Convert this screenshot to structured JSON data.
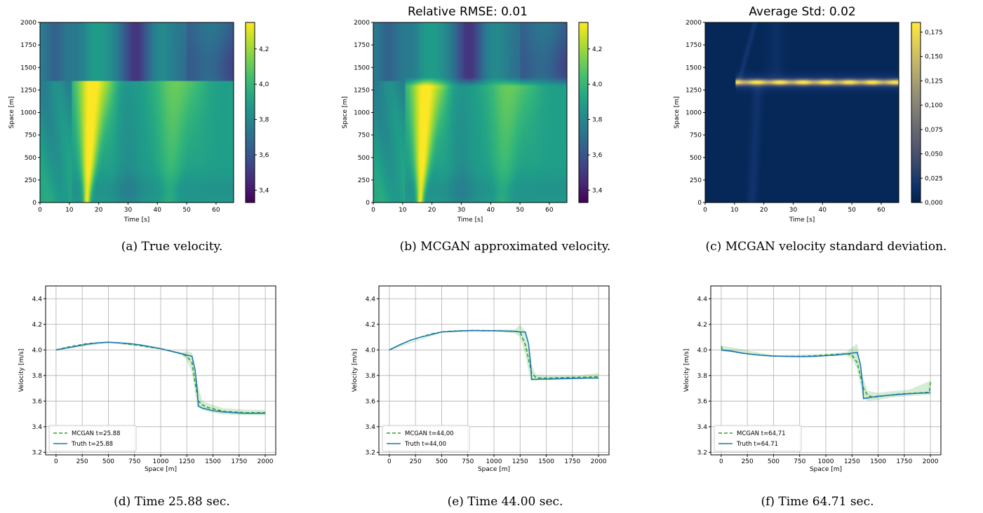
{
  "captions": [
    "(a) True velocity.",
    "(b) MCGAN approximated velocity.",
    "(c) MCGAN velocity standard deviation.",
    "(d) Time 25.88 sec.",
    "(e) Time 44.00 sec.",
    "(f) Time 64.71 sec."
  ],
  "chart_data": [
    {
      "type": "heatmap",
      "title": "",
      "xlabel": "Time [s]",
      "ylabel": "Space [m]",
      "xlim": [
        0,
        66
      ],
      "ylim": [
        0,
        2000
      ],
      "xticks": [
        0,
        10,
        20,
        30,
        40,
        50,
        60
      ],
      "yticks": [
        0,
        250,
        500,
        750,
        1000,
        1250,
        1500,
        1750,
        2000
      ],
      "colormap": "viridis",
      "colorbar_range": [
        3.33,
        4.35
      ],
      "colorbar_ticks": [
        "3,4",
        "3,6",
        "3,8",
        "4,0",
        "4,2"
      ],
      "colorbar_tick_values": [
        3.4,
        3.6,
        3.8,
        4.0,
        4.2
      ],
      "shock_position_m": 1350,
      "shock_start_time_s": 11
    },
    {
      "type": "heatmap",
      "title": "Relative RMSE: 0.01",
      "xlabel": "Time [s]",
      "ylabel": "Space [m]",
      "xlim": [
        0,
        66
      ],
      "ylim": [
        0,
        2000
      ],
      "xticks": [
        0,
        10,
        20,
        30,
        40,
        50,
        60
      ],
      "yticks": [
        0,
        250,
        500,
        750,
        1000,
        1250,
        1500,
        1750,
        2000
      ],
      "colormap": "viridis",
      "colorbar_range": [
        3.33,
        4.35
      ],
      "colorbar_ticks": [
        "3,4",
        "3,6",
        "3,8",
        "4,0",
        "4,2"
      ],
      "colorbar_tick_values": [
        3.4,
        3.6,
        3.8,
        4.0,
        4.2
      ],
      "shock_position_m": 1350,
      "shock_start_time_s": 11
    },
    {
      "type": "heatmap",
      "title": "Average Std: 0.02",
      "xlabel": "Time [s]",
      "ylabel": "Space [m]",
      "xlim": [
        0,
        66
      ],
      "ylim": [
        0,
        2000
      ],
      "xticks": [
        0,
        10,
        20,
        30,
        40,
        50,
        60
      ],
      "yticks": [
        0,
        250,
        500,
        750,
        1000,
        1250,
        1500,
        1750,
        2000
      ],
      "colormap": "cividis",
      "colorbar_range": [
        0,
        0.185
      ],
      "colorbar_ticks": [
        "0,000",
        "0,025",
        "0,050",
        "0,075",
        "0,100",
        "0,125",
        "0,150",
        "0,175"
      ],
      "colorbar_tick_values": [
        0,
        0.025,
        0.05,
        0.075,
        0.1,
        0.125,
        0.15,
        0.175
      ],
      "high_std_band_m": [
        1300,
        1380
      ],
      "high_std_start_time_s": 11
    },
    {
      "type": "line",
      "xlabel": "Space [m]",
      "ylabel": "Velocity [m/s]",
      "xlim": [
        -100,
        2100
      ],
      "ylim": [
        3.18,
        4.5
      ],
      "xticks": [
        0,
        250,
        500,
        750,
        1000,
        1250,
        1500,
        1750,
        2000
      ],
      "yticks": [
        3.2,
        3.4,
        3.6,
        3.8,
        4.0,
        4.2,
        4.4
      ],
      "ytick_labels": [
        "3.2",
        "3.4",
        "3.6",
        "3.8",
        "4.0",
        "4.2",
        "4.4"
      ],
      "grid": true,
      "legend": "bottom-left",
      "series": [
        {
          "name": "MCGAN t=25.88",
          "style": "dashed",
          "color": "#2ca02c",
          "x": [
            0,
            100,
            200,
            300,
            400,
            500,
            600,
            700,
            800,
            900,
            1000,
            1100,
            1200,
            1250,
            1300,
            1330,
            1360,
            1400,
            1450,
            1500,
            1600,
            1700,
            1800,
            1900,
            2000
          ],
          "y": [
            4.0,
            4.02,
            4.035,
            4.05,
            4.055,
            4.06,
            4.055,
            4.045,
            4.035,
            4.02,
            4.01,
            3.99,
            3.97,
            3.95,
            3.9,
            3.74,
            3.6,
            3.57,
            3.55,
            3.54,
            3.52,
            3.515,
            3.51,
            3.51,
            3.51
          ]
        },
        {
          "name": "Truth t=25.88",
          "style": "solid",
          "color": "#1f77b4",
          "x": [
            0,
            100,
            200,
            300,
            400,
            500,
            600,
            700,
            800,
            900,
            1000,
            1100,
            1200,
            1250,
            1300,
            1330,
            1350,
            1360,
            1400,
            1450,
            1500,
            1600,
            1700,
            1800,
            1900,
            2000
          ],
          "y": [
            4.0,
            4.015,
            4.03,
            4.045,
            4.055,
            4.06,
            4.055,
            4.05,
            4.04,
            4.025,
            4.01,
            3.99,
            3.97,
            3.96,
            3.95,
            3.84,
            3.68,
            3.56,
            3.545,
            3.535,
            3.525,
            3.515,
            3.51,
            3.505,
            3.505,
            3.505
          ]
        }
      ],
      "uncertainty_band": {
        "x": [
          0,
          500,
          1000,
          1200,
          1250,
          1300,
          1350,
          1400,
          1500,
          1600,
          1800,
          2000
        ],
        "lower": [
          3.995,
          4.055,
          4.005,
          3.96,
          3.92,
          3.82,
          3.56,
          3.53,
          3.51,
          3.495,
          3.49,
          3.49
        ],
        "upper": [
          4.005,
          4.065,
          4.015,
          3.98,
          3.99,
          3.98,
          3.74,
          3.6,
          3.57,
          3.545,
          3.535,
          3.53
        ]
      }
    },
    {
      "type": "line",
      "xlabel": "Space [m]",
      "ylabel": "Velocity [m/s]",
      "xlim": [
        -100,
        2100
      ],
      "ylim": [
        3.18,
        4.5
      ],
      "xticks": [
        0,
        250,
        500,
        750,
        1000,
        1250,
        1500,
        1750,
        2000
      ],
      "yticks": [
        3.2,
        3.4,
        3.6,
        3.8,
        4.0,
        4.2,
        4.4
      ],
      "ytick_labels": [
        "3.2",
        "3.4",
        "3.6",
        "3.8",
        "4.0",
        "4.2",
        "4.4"
      ],
      "grid": true,
      "legend": "bottom-left",
      "series": [
        {
          "name": "MCGAN t=44,00",
          "style": "dashed",
          "color": "#2ca02c",
          "x": [
            0,
            100,
            200,
            300,
            400,
            500,
            600,
            700,
            800,
            900,
            1000,
            1100,
            1200,
            1250,
            1300,
            1330,
            1360,
            1400,
            1450,
            1500,
            1600,
            1700,
            1800,
            1900,
            1990,
            2000
          ],
          "y": [
            4.0,
            4.04,
            4.075,
            4.1,
            4.125,
            4.14,
            4.148,
            4.15,
            4.152,
            4.152,
            4.15,
            4.148,
            4.145,
            4.14,
            4.04,
            3.93,
            3.82,
            3.785,
            3.78,
            3.78,
            3.782,
            3.784,
            3.786,
            3.787,
            3.79,
            3.805
          ]
        },
        {
          "name": "Truth t=44,00",
          "style": "solid",
          "color": "#1f77b4",
          "x": [
            0,
            100,
            200,
            300,
            400,
            500,
            600,
            700,
            800,
            900,
            1000,
            1100,
            1200,
            1250,
            1300,
            1330,
            1350,
            1360,
            1400,
            1450,
            1500,
            1600,
            1700,
            1800,
            1900,
            2000
          ],
          "y": [
            4.0,
            4.04,
            4.075,
            4.1,
            4.12,
            4.14,
            4.145,
            4.15,
            4.152,
            4.15,
            4.15,
            4.148,
            4.145,
            4.14,
            4.14,
            4.05,
            3.9,
            3.77,
            3.77,
            3.772,
            3.772,
            3.774,
            3.776,
            3.778,
            3.78,
            3.78
          ]
        }
      ],
      "uncertainty_band": {
        "x": [
          0,
          500,
          1000,
          1200,
          1250,
          1300,
          1350,
          1400,
          1500,
          1600,
          1800,
          2000
        ],
        "lower": [
          3.995,
          4.135,
          4.145,
          4.13,
          4.1,
          3.96,
          3.76,
          3.76,
          3.765,
          3.768,
          3.772,
          3.775
        ],
        "upper": [
          4.005,
          4.145,
          4.157,
          4.16,
          4.2,
          4.14,
          3.9,
          3.81,
          3.8,
          3.8,
          3.8,
          3.82
        ]
      }
    },
    {
      "type": "line",
      "xlabel": "Space [m]",
      "ylabel": "Velocity [m/s]",
      "xlim": [
        -100,
        2100
      ],
      "ylim": [
        3.18,
        4.5
      ],
      "xticks": [
        0,
        250,
        500,
        750,
        1000,
        1250,
        1500,
        1750,
        2000
      ],
      "yticks": [
        3.2,
        3.4,
        3.6,
        3.8,
        4.0,
        4.2,
        4.4
      ],
      "ytick_labels": [
        "3.2",
        "3.4",
        "3.6",
        "3.8",
        "4.0",
        "4.2",
        "4.4"
      ],
      "grid": true,
      "legend": "bottom-left",
      "series": [
        {
          "name": "MCGAN t=64,71",
          "style": "dashed",
          "color": "#2ca02c",
          "x": [
            0,
            10,
            100,
            200,
            300,
            400,
            500,
            600,
            700,
            800,
            900,
            1000,
            1100,
            1200,
            1250,
            1300,
            1330,
            1360,
            1400,
            1450,
            1500,
            1600,
            1700,
            1800,
            1900,
            1990,
            2000
          ],
          "y": [
            4.03,
            4.0,
            3.99,
            3.975,
            3.965,
            3.957,
            3.952,
            3.95,
            3.95,
            3.95,
            3.955,
            3.96,
            3.965,
            3.97,
            3.96,
            3.9,
            3.8,
            3.7,
            3.645,
            3.63,
            3.635,
            3.645,
            3.655,
            3.66,
            3.665,
            3.67,
            3.75
          ]
        },
        {
          "name": "Truth t=64.71",
          "style": "solid",
          "color": "#1f77b4",
          "x": [
            0,
            100,
            200,
            300,
            400,
            500,
            600,
            700,
            800,
            900,
            1000,
            1100,
            1200,
            1250,
            1300,
            1330,
            1350,
            1360,
            1400,
            1450,
            1500,
            1600,
            1700,
            1800,
            1900,
            2000
          ],
          "y": [
            4.0,
            3.99,
            3.975,
            3.965,
            3.957,
            3.952,
            3.95,
            3.948,
            3.948,
            3.95,
            3.955,
            3.96,
            3.97,
            3.975,
            3.98,
            3.89,
            3.75,
            3.62,
            3.625,
            3.632,
            3.638,
            3.645,
            3.652,
            3.658,
            3.662,
            3.665
          ]
        }
      ],
      "uncertainty_band": {
        "x": [
          0,
          500,
          1000,
          1200,
          1250,
          1300,
          1350,
          1400,
          1500,
          1600,
          1800,
          2000
        ],
        "lower": [
          3.99,
          3.945,
          3.952,
          3.955,
          3.93,
          3.85,
          3.64,
          3.6,
          3.61,
          3.625,
          3.64,
          3.65
        ],
        "upper": [
          4.035,
          3.958,
          3.968,
          3.985,
          4.02,
          4.05,
          3.79,
          3.68,
          3.665,
          3.675,
          3.69,
          3.76
        ]
      }
    }
  ]
}
